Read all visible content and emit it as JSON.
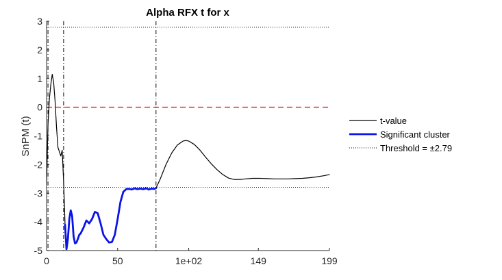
{
  "chart_data": {
    "type": "line",
    "title": "Alpha RFX t for x",
    "xlabel": "",
    "ylabel": "SnPM (t)",
    "xlim": [
      0,
      199
    ],
    "ylim": [
      -5,
      3
    ],
    "x_ticks": [
      0,
      50,
      100,
      149,
      199
    ],
    "x_tick_labels": [
      "0",
      "50",
      "1e+02",
      "149",
      "199"
    ],
    "y_ticks": [
      -5,
      -4,
      -3,
      -2,
      -1,
      0,
      1,
      2,
      3
    ],
    "y_tick_labels": [
      "-5",
      "-4",
      "-3",
      "-2",
      "-1",
      "0",
      "1",
      "2",
      "3"
    ],
    "threshold": 2.79,
    "zero_line": 0,
    "cluster_bounds": [
      1,
      12,
      77
    ],
    "colors": {
      "tvalue": "#000000",
      "cluster": "#0a14e6",
      "threshold": "#000000",
      "zero": "#e6262f"
    },
    "legend_position": "right",
    "legend": [
      {
        "label": "t-value",
        "style": "solid-black"
      },
      {
        "label": "Significant cluster",
        "style": "thick-blue"
      },
      {
        "label": "Threshold = ±2.79",
        "style": "dotted-black"
      }
    ],
    "series": [
      {
        "name": "t-value",
        "x": [
          0,
          1,
          2,
          3,
          4,
          5,
          6,
          7,
          8,
          9,
          10,
          11,
          12,
          13
        ],
        "y": [
          -2.7,
          -0.6,
          0.3,
          0.8,
          1.15,
          0.85,
          0.2,
          -0.7,
          -1.4,
          -1.55,
          -1.7,
          -1.5,
          -2.6,
          -4.1
        ]
      },
      {
        "name": "t-value",
        "x": [
          77,
          80,
          84,
          88,
          92,
          96,
          98,
          100,
          104,
          108,
          112,
          116,
          120,
          124,
          128,
          132,
          136,
          140,
          145,
          150,
          155,
          160,
          165,
          170,
          175,
          180,
          185,
          190,
          195,
          199
        ],
        "y": [
          -2.82,
          -2.5,
          -2.0,
          -1.6,
          -1.32,
          -1.18,
          -1.16,
          -1.18,
          -1.3,
          -1.5,
          -1.75,
          -1.98,
          -2.18,
          -2.35,
          -2.47,
          -2.52,
          -2.52,
          -2.5,
          -2.48,
          -2.48,
          -2.49,
          -2.5,
          -2.5,
          -2.5,
          -2.49,
          -2.48,
          -2.46,
          -2.43,
          -2.39,
          -2.35
        ]
      },
      {
        "name": "Significant cluster",
        "x": [
          13,
          14,
          15,
          16,
          17,
          18,
          19,
          20,
          21,
          22,
          23,
          24,
          26,
          28,
          30,
          32,
          34,
          36,
          38,
          40,
          42,
          44,
          46,
          48,
          50,
          52,
          54,
          56,
          58,
          60,
          62,
          64,
          66,
          68,
          70,
          72,
          74,
          76,
          77
        ],
        "y": [
          -4.1,
          -4.95,
          -4.6,
          -3.9,
          -3.6,
          -3.8,
          -4.5,
          -4.75,
          -4.72,
          -4.6,
          -4.45,
          -4.4,
          -4.2,
          -3.95,
          -4.05,
          -3.9,
          -3.65,
          -3.7,
          -4.05,
          -4.45,
          -4.6,
          -4.72,
          -4.7,
          -4.45,
          -3.9,
          -3.3,
          -2.95,
          -2.86,
          -2.85,
          -2.87,
          -2.83,
          -2.86,
          -2.84,
          -2.86,
          -2.83,
          -2.87,
          -2.84,
          -2.85,
          -2.82
        ]
      }
    ]
  }
}
